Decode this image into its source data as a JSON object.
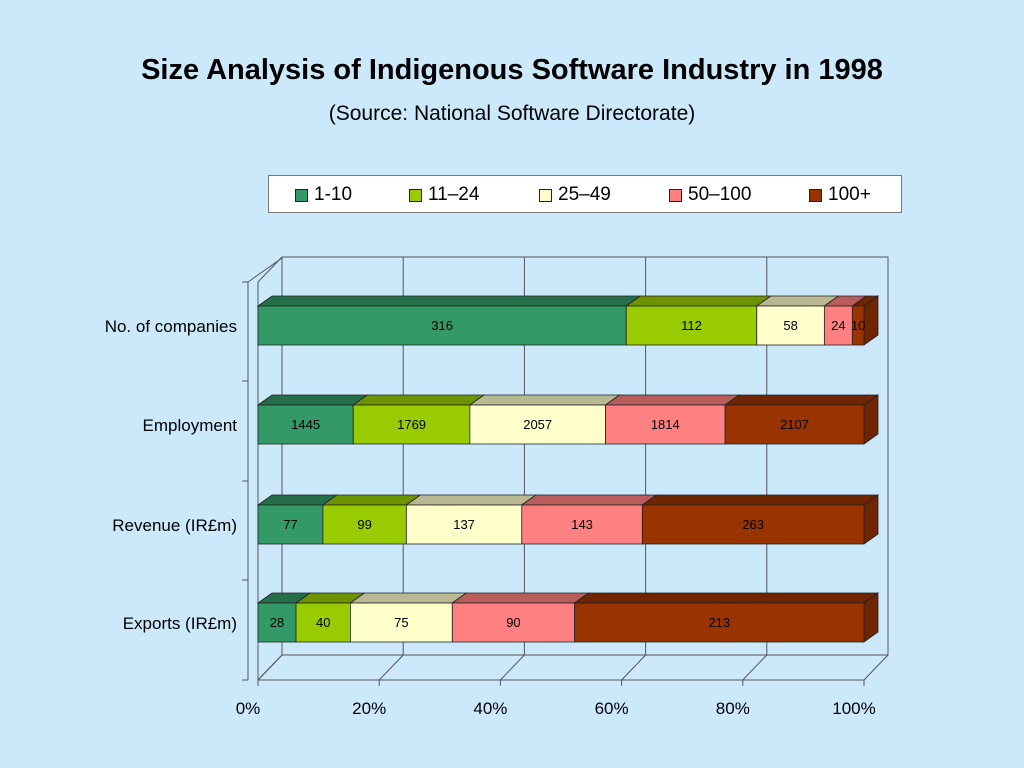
{
  "chart_data": {
    "type": "bar",
    "orientation": "horizontal",
    "stacked": "percent",
    "three_d": true,
    "title": "Size Analysis of Indigenous Software Industry in 1998",
    "subtitle": "(Source: National Software Directorate)",
    "categories": [
      "No. of companies",
      "Employment",
      "Revenue (IR£m)",
      "Exports (IR£m)"
    ],
    "series": [
      {
        "name": "1-10",
        "color": "#339966",
        "top_color": "#246e49",
        "values": [
          316,
          1445,
          77,
          28
        ]
      },
      {
        "name": "11–24",
        "color": "#99cc00",
        "top_color": "#6e9300",
        "values": [
          112,
          1769,
          99,
          40
        ]
      },
      {
        "name": "25–49",
        "color": "#ffffcc",
        "top_color": "#b8b893",
        "values": [
          58,
          2057,
          137,
          75
        ]
      },
      {
        "name": "50–100",
        "color": "#ff8080",
        "top_color": "#b85c5c",
        "values": [
          24,
          1814,
          143,
          90
        ]
      },
      {
        "name": "100+",
        "color": "#993300",
        "top_color": "#6e2500",
        "values": [
          10,
          2107,
          263,
          213
        ]
      }
    ],
    "x_ticks": [
      "0%",
      "20%",
      "40%",
      "60%",
      "80%",
      "100%"
    ],
    "xlim": [
      0,
      100
    ],
    "grid": true,
    "legend": "top",
    "background": "#cce9fb"
  }
}
